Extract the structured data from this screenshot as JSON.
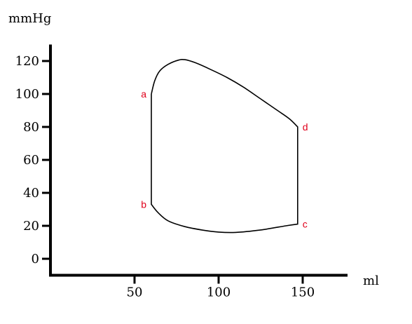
{
  "chart_data": {
    "type": "line",
    "title": "",
    "xlabel": "ml",
    "ylabel": "mmHg",
    "xlim": [
      0,
      180
    ],
    "ylim": [
      -10,
      130
    ],
    "x_ticks": [
      {
        "value": 50,
        "label": "50"
      },
      {
        "value": 100,
        "label": "100"
      },
      {
        "value": 150,
        "label": "150"
      }
    ],
    "y_ticks": [
      {
        "value": 0,
        "label": "0"
      },
      {
        "value": 20,
        "label": "20"
      },
      {
        "value": 40,
        "label": "40"
      },
      {
        "value": 60,
        "label": "60"
      },
      {
        "value": 80,
        "label": "80"
      },
      {
        "value": 100,
        "label": "100"
      },
      {
        "value": 120,
        "label": "120"
      }
    ],
    "grid": false,
    "points": [
      {
        "label": "a",
        "x": 60,
        "y": 100
      },
      {
        "label": "b",
        "x": 60,
        "y": 33
      },
      {
        "label": "c",
        "x": 147,
        "y": 21
      },
      {
        "label": "d",
        "x": 147,
        "y": 80
      }
    ],
    "series": [
      {
        "points": [
          [
            60,
            100
          ],
          [
            62,
            108
          ],
          [
            65,
            114
          ],
          [
            70,
            118
          ],
          [
            76,
            120.5
          ],
          [
            80,
            120.8
          ],
          [
            86,
            119
          ],
          [
            95,
            115
          ],
          [
            105,
            110
          ],
          [
            115,
            104
          ],
          [
            125,
            97
          ],
          [
            135,
            90
          ],
          [
            142,
            85
          ],
          [
            147,
            80
          ],
          [
            147,
            21
          ],
          [
            140,
            20
          ],
          [
            125,
            17.5
          ],
          [
            110,
            16
          ],
          [
            100,
            16.2
          ],
          [
            90,
            17.5
          ],
          [
            80,
            19.5
          ],
          [
            70,
            23
          ],
          [
            64,
            28
          ],
          [
            60,
            33
          ],
          [
            60,
            100
          ]
        ]
      }
    ],
    "colors": {
      "line": "#000000",
      "axis": "#000000",
      "point_label": "#e0001b"
    }
  }
}
